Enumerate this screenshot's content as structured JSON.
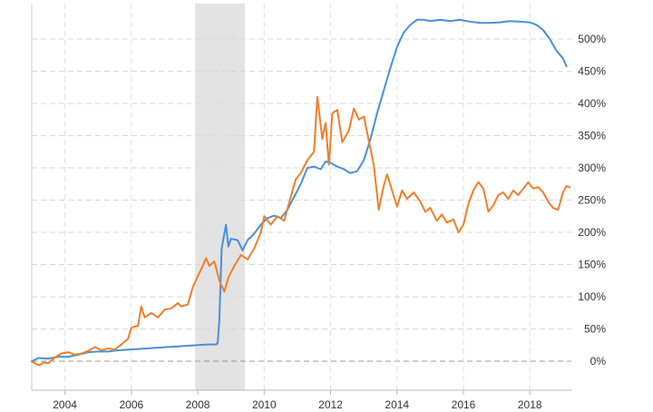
{
  "chart_data": {
    "type": "line",
    "title": "",
    "xlabel": "",
    "ylabel": "",
    "x_range": [
      2003.0,
      2019.25
    ],
    "ylim": [
      -45,
      555
    ],
    "y_axis_side": "right",
    "grid": true,
    "recession_band": {
      "start": 2007.92,
      "end": 2009.42,
      "color": "#e3e3e3"
    },
    "x_ticks": [
      {
        "value": 2004,
        "label": "2004"
      },
      {
        "value": 2006,
        "label": "2006"
      },
      {
        "value": 2008,
        "label": "2008"
      },
      {
        "value": 2010,
        "label": "2010"
      },
      {
        "value": 2012,
        "label": "2012"
      },
      {
        "value": 2014,
        "label": "2014"
      },
      {
        "value": 2016,
        "label": "2016"
      },
      {
        "value": 2018,
        "label": "2018"
      }
    ],
    "y_ticks": [
      {
        "value": 0,
        "label": "0%"
      },
      {
        "value": 50,
        "label": "50%"
      },
      {
        "value": 100,
        "label": "100%"
      },
      {
        "value": 150,
        "label": "150%"
      },
      {
        "value": 200,
        "label": "200%"
      },
      {
        "value": 250,
        "label": "250%"
      },
      {
        "value": 300,
        "label": "300%"
      },
      {
        "value": 350,
        "label": "350%"
      },
      {
        "value": 400,
        "label": "400%"
      },
      {
        "value": 450,
        "label": "450%"
      },
      {
        "value": 500,
        "label": "500%"
      }
    ],
    "series": [
      {
        "color": "#4a90d9",
        "points": [
          [
            2003.0,
            0
          ],
          [
            2003.2,
            5
          ],
          [
            2003.5,
            4
          ],
          [
            2003.8,
            7
          ],
          [
            2004.1,
            7
          ],
          [
            2004.4,
            10
          ],
          [
            2004.7,
            14
          ],
          [
            2005.0,
            15
          ],
          [
            2005.3,
            15
          ],
          [
            2005.6,
            17
          ],
          [
            2005.9,
            18
          ],
          [
            2006.2,
            19
          ],
          [
            2006.5,
            20
          ],
          [
            2006.8,
            21
          ],
          [
            2007.1,
            22
          ],
          [
            2007.4,
            23
          ],
          [
            2007.7,
            24
          ],
          [
            2008.0,
            25
          ],
          [
            2008.3,
            26
          ],
          [
            2008.55,
            26
          ],
          [
            2008.6,
            28
          ],
          [
            2008.65,
            65
          ],
          [
            2008.72,
            175
          ],
          [
            2008.85,
            212
          ],
          [
            2008.92,
            178
          ],
          [
            2009.0,
            190
          ],
          [
            2009.2,
            188
          ],
          [
            2009.35,
            172
          ],
          [
            2009.5,
            188
          ],
          [
            2009.7,
            198
          ],
          [
            2009.9,
            212
          ],
          [
            2010.1,
            222
          ],
          [
            2010.3,
            226
          ],
          [
            2010.5,
            222
          ],
          [
            2010.7,
            235
          ],
          [
            2010.9,
            255
          ],
          [
            2011.1,
            275
          ],
          [
            2011.3,
            300
          ],
          [
            2011.5,
            302
          ],
          [
            2011.7,
            298
          ],
          [
            2011.85,
            310
          ],
          [
            2012.0,
            308
          ],
          [
            2012.2,
            302
          ],
          [
            2012.4,
            298
          ],
          [
            2012.6,
            292
          ],
          [
            2012.8,
            295
          ],
          [
            2013.0,
            312
          ],
          [
            2013.2,
            345
          ],
          [
            2013.4,
            385
          ],
          [
            2013.6,
            420
          ],
          [
            2013.8,
            455
          ],
          [
            2014.0,
            488
          ],
          [
            2014.2,
            510
          ],
          [
            2014.4,
            522
          ],
          [
            2014.6,
            530
          ],
          [
            2014.8,
            530
          ],
          [
            2015.0,
            528
          ],
          [
            2015.3,
            530
          ],
          [
            2015.6,
            528
          ],
          [
            2015.9,
            530
          ],
          [
            2016.2,
            527
          ],
          [
            2016.5,
            525
          ],
          [
            2016.8,
            525
          ],
          [
            2017.1,
            526
          ],
          [
            2017.4,
            528
          ],
          [
            2017.7,
            527
          ],
          [
            2018.0,
            526
          ],
          [
            2018.2,
            522
          ],
          [
            2018.4,
            514
          ],
          [
            2018.6,
            500
          ],
          [
            2018.8,
            482
          ],
          [
            2019.0,
            470
          ],
          [
            2019.1,
            458
          ]
        ]
      },
      {
        "color": "#f07f2a",
        "points": [
          [
            2003.0,
            0
          ],
          [
            2003.15,
            -5
          ],
          [
            2003.25,
            -6
          ],
          [
            2003.35,
            -2
          ],
          [
            2003.5,
            -3
          ],
          [
            2003.7,
            6
          ],
          [
            2003.9,
            12
          ],
          [
            2004.1,
            14
          ],
          [
            2004.3,
            10
          ],
          [
            2004.5,
            12
          ],
          [
            2004.7,
            16
          ],
          [
            2004.9,
            22
          ],
          [
            2005.1,
            17
          ],
          [
            2005.3,
            20
          ],
          [
            2005.5,
            18
          ],
          [
            2005.7,
            26
          ],
          [
            2005.9,
            35
          ],
          [
            2006.0,
            52
          ],
          [
            2006.2,
            55
          ],
          [
            2006.3,
            85
          ],
          [
            2006.4,
            68
          ],
          [
            2006.6,
            75
          ],
          [
            2006.8,
            68
          ],
          [
            2007.0,
            80
          ],
          [
            2007.2,
            82
          ],
          [
            2007.4,
            90
          ],
          [
            2007.5,
            85
          ],
          [
            2007.7,
            88
          ],
          [
            2007.85,
            115
          ],
          [
            2008.0,
            132
          ],
          [
            2008.15,
            148
          ],
          [
            2008.25,
            160
          ],
          [
            2008.35,
            148
          ],
          [
            2008.5,
            155
          ],
          [
            2008.65,
            125
          ],
          [
            2008.8,
            108
          ],
          [
            2008.92,
            130
          ],
          [
            2009.1,
            148
          ],
          [
            2009.3,
            165
          ],
          [
            2009.5,
            158
          ],
          [
            2009.7,
            175
          ],
          [
            2009.9,
            200
          ],
          [
            2010.0,
            225
          ],
          [
            2010.2,
            212
          ],
          [
            2010.4,
            225
          ],
          [
            2010.6,
            218
          ],
          [
            2010.8,
            255
          ],
          [
            2010.95,
            282
          ],
          [
            2011.1,
            292
          ],
          [
            2011.3,
            312
          ],
          [
            2011.5,
            325
          ],
          [
            2011.6,
            410
          ],
          [
            2011.75,
            345
          ],
          [
            2011.85,
            370
          ],
          [
            2011.95,
            305
          ],
          [
            2012.05,
            385
          ],
          [
            2012.2,
            390
          ],
          [
            2012.35,
            340
          ],
          [
            2012.55,
            358
          ],
          [
            2012.7,
            392
          ],
          [
            2012.85,
            375
          ],
          [
            2013.0,
            380
          ],
          [
            2013.1,
            355
          ],
          [
            2013.3,
            305
          ],
          [
            2013.45,
            235
          ],
          [
            2013.6,
            272
          ],
          [
            2013.7,
            290
          ],
          [
            2013.85,
            265
          ],
          [
            2014.0,
            240
          ],
          [
            2014.15,
            265
          ],
          [
            2014.3,
            252
          ],
          [
            2014.5,
            262
          ],
          [
            2014.7,
            248
          ],
          [
            2014.85,
            232
          ],
          [
            2015.0,
            238
          ],
          [
            2015.2,
            218
          ],
          [
            2015.35,
            228
          ],
          [
            2015.5,
            215
          ],
          [
            2015.7,
            220
          ],
          [
            2015.85,
            200
          ],
          [
            2016.0,
            212
          ],
          [
            2016.15,
            245
          ],
          [
            2016.3,
            265
          ],
          [
            2016.45,
            278
          ],
          [
            2016.6,
            268
          ],
          [
            2016.75,
            232
          ],
          [
            2016.9,
            242
          ],
          [
            2017.05,
            258
          ],
          [
            2017.2,
            262
          ],
          [
            2017.35,
            252
          ],
          [
            2017.5,
            265
          ],
          [
            2017.65,
            258
          ],
          [
            2017.8,
            268
          ],
          [
            2017.95,
            278
          ],
          [
            2018.1,
            268
          ],
          [
            2018.25,
            270
          ],
          [
            2018.4,
            262
          ],
          [
            2018.55,
            248
          ],
          [
            2018.7,
            238
          ],
          [
            2018.85,
            235
          ],
          [
            2019.0,
            262
          ],
          [
            2019.1,
            272
          ],
          [
            2019.2,
            270
          ]
        ]
      }
    ]
  }
}
